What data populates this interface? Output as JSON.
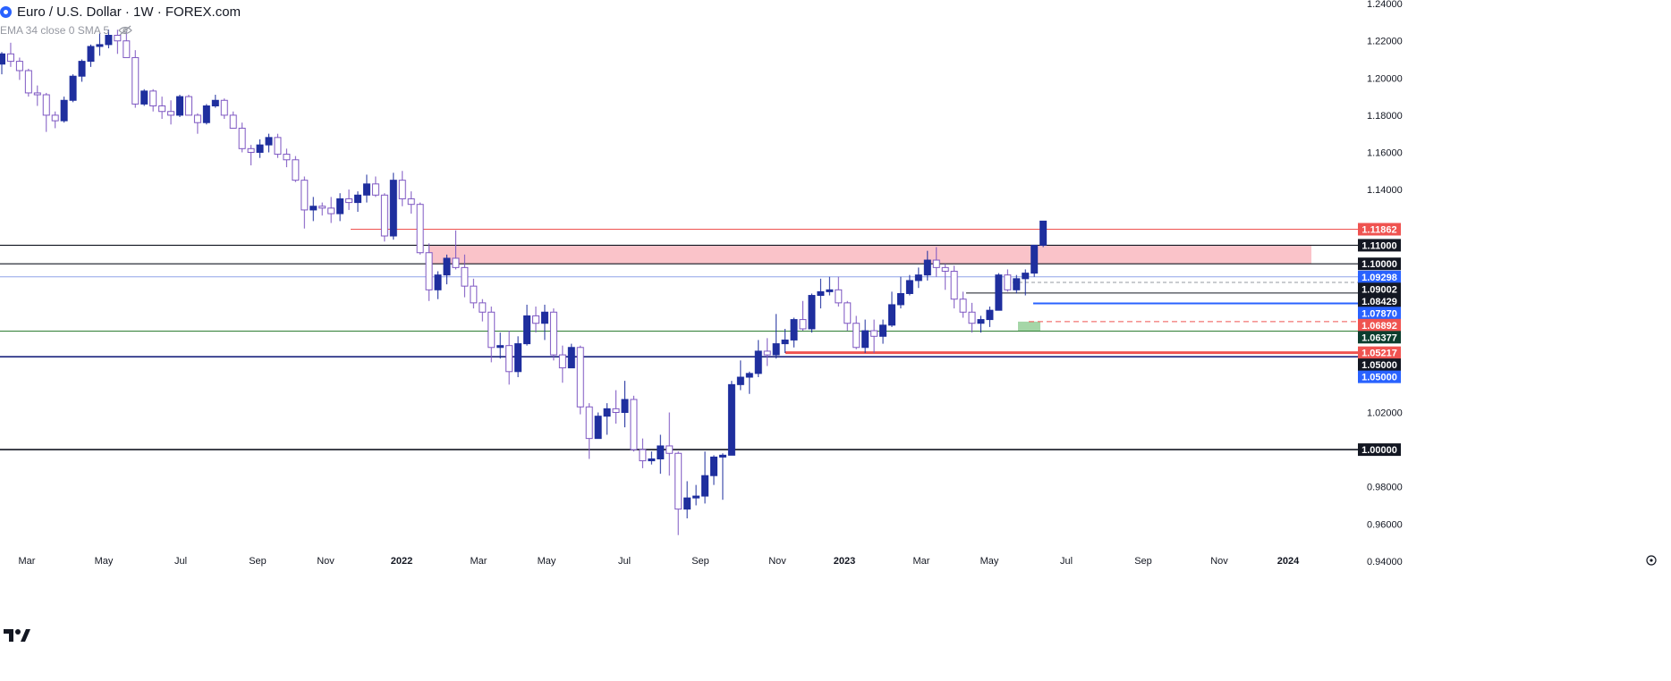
{
  "header": {
    "title": "Euro / U.S. Dollar · 1W · FOREX.com",
    "indicator": "EMA 34 close 0 SMA 5"
  },
  "colors": {
    "bull": "#1f2f9e",
    "bear_outline": "#7e57c2",
    "resistance_zone": "#f9b8c0",
    "support_zone": "#a5d6a7",
    "red_line": "#ef5350",
    "blue_line": "#2962ff",
    "black_line": "#131722"
  },
  "chart_data": {
    "type": "candlestick",
    "title": "Euro / U.S. Dollar · 1W · FOREX.com",
    "y_axis": {
      "min": 0.938,
      "max": 1.242,
      "ticks": [
        "1.24000",
        "1.22000",
        "1.20000",
        "1.18000",
        "1.16000",
        "1.14000",
        "1.02000",
        "0.98000",
        "0.96000",
        "0.94000"
      ]
    },
    "x_axis": {
      "labels": [
        "Mar",
        "May",
        "Jul",
        "Sep",
        "Nov",
        "2022",
        "Mar",
        "May",
        "Jul",
        "Sep",
        "Nov",
        "2023",
        "Mar",
        "May",
        "Jul",
        "Sep",
        "Nov",
        "2024"
      ],
      "start_date": "2021-02-22",
      "week_count": 127
    },
    "candles_ohlc": [
      [
        1.2075,
        1.214,
        1.202,
        1.213
      ],
      [
        1.213,
        1.219,
        1.206,
        1.209
      ],
      [
        1.209,
        1.211,
        1.199,
        1.204
      ],
      [
        1.204,
        1.205,
        1.19,
        1.192
      ],
      [
        1.192,
        1.196,
        1.185,
        1.191
      ],
      [
        1.191,
        1.192,
        1.171,
        1.18
      ],
      [
        1.18,
        1.182,
        1.173,
        1.177
      ],
      [
        1.177,
        1.19,
        1.176,
        1.188
      ],
      [
        1.188,
        1.202,
        1.187,
        1.201
      ],
      [
        1.201,
        1.21,
        1.198,
        1.209
      ],
      [
        1.209,
        1.218,
        1.206,
        1.217
      ],
      [
        1.217,
        1.224,
        1.212,
        1.218
      ],
      [
        1.218,
        1.226,
        1.216,
        1.223
      ],
      [
        1.223,
        1.226,
        1.213,
        1.22
      ],
      [
        1.22,
        1.225,
        1.211,
        1.211
      ],
      [
        1.211,
        1.215,
        1.184,
        1.186
      ],
      [
        1.186,
        1.194,
        1.185,
        1.193
      ],
      [
        1.193,
        1.194,
        1.182,
        1.185
      ],
      [
        1.185,
        1.19,
        1.178,
        1.182
      ],
      [
        1.182,
        1.188,
        1.175,
        1.18
      ],
      [
        1.18,
        1.191,
        1.179,
        1.19
      ],
      [
        1.19,
        1.191,
        1.18,
        1.18
      ],
      [
        1.18,
        1.181,
        1.17,
        1.176
      ],
      [
        1.176,
        1.186,
        1.175,
        1.185
      ],
      [
        1.185,
        1.191,
        1.184,
        1.188
      ],
      [
        1.188,
        1.189,
        1.178,
        1.18
      ],
      [
        1.18,
        1.182,
        1.173,
        1.173
      ],
      [
        1.173,
        1.176,
        1.16,
        1.162
      ],
      [
        1.162,
        1.164,
        1.153,
        1.16
      ],
      [
        1.16,
        1.167,
        1.157,
        1.164
      ],
      [
        1.164,
        1.17,
        1.16,
        1.168
      ],
      [
        1.168,
        1.17,
        1.157,
        1.159
      ],
      [
        1.159,
        1.162,
        1.152,
        1.156
      ],
      [
        1.156,
        1.158,
        1.144,
        1.145
      ],
      [
        1.145,
        1.147,
        1.119,
        1.129
      ],
      [
        1.129,
        1.136,
        1.123,
        1.131
      ],
      [
        1.131,
        1.133,
        1.126,
        1.13
      ],
      [
        1.13,
        1.136,
        1.122,
        1.127
      ],
      [
        1.127,
        1.138,
        1.123,
        1.135
      ],
      [
        1.135,
        1.14,
        1.129,
        1.133
      ],
      [
        1.133,
        1.139,
        1.128,
        1.137
      ],
      [
        1.137,
        1.148,
        1.133,
        1.143
      ],
      [
        1.143,
        1.147,
        1.136,
        1.137
      ],
      [
        1.137,
        1.138,
        1.112,
        1.115
      ],
      [
        1.115,
        1.149,
        1.113,
        1.145
      ],
      [
        1.145,
        1.15,
        1.131,
        1.135
      ],
      [
        1.135,
        1.139,
        1.127,
        1.132
      ],
      [
        1.132,
        1.133,
        1.105,
        1.106
      ],
      [
        1.106,
        1.111,
        1.08,
        1.086
      ],
      [
        1.086,
        1.096,
        1.081,
        1.094
      ],
      [
        1.094,
        1.105,
        1.089,
        1.103
      ],
      [
        1.103,
        1.118,
        1.097,
        1.098
      ],
      [
        1.098,
        1.105,
        1.082,
        1.088
      ],
      [
        1.088,
        1.092,
        1.076,
        1.079
      ],
      [
        1.079,
        1.081,
        1.069,
        1.074
      ],
      [
        1.074,
        1.077,
        1.047,
        1.055
      ],
      [
        1.055,
        1.063,
        1.049,
        1.056
      ],
      [
        1.056,
        1.064,
        1.035,
        1.042
      ],
      [
        1.042,
        1.061,
        1.039,
        1.057
      ],
      [
        1.057,
        1.078,
        1.056,
        1.072
      ],
      [
        1.072,
        1.077,
        1.063,
        1.068
      ],
      [
        1.068,
        1.078,
        1.059,
        1.074
      ],
      [
        1.074,
        1.076,
        1.048,
        1.051
      ],
      [
        1.051,
        1.056,
        1.036,
        1.044
      ],
      [
        1.044,
        1.057,
        1.044,
        1.055
      ],
      [
        1.055,
        1.056,
        1.019,
        1.023
      ],
      [
        1.023,
        1.025,
        0.995,
        1.006
      ],
      [
        1.006,
        1.02,
        1.006,
        1.018
      ],
      [
        1.018,
        1.025,
        1.008,
        1.022
      ],
      [
        1.022,
        1.032,
        1.014,
        1.02
      ],
      [
        1.02,
        1.037,
        1.012,
        1.027
      ],
      [
        1.027,
        1.029,
        0.999,
        1.0
      ],
      [
        1.0,
        1.006,
        0.99,
        0.994
      ],
      [
        0.994,
        0.999,
        0.992,
        0.995
      ],
      [
        0.995,
        1.008,
        0.987,
        1.002
      ],
      [
        1.002,
        1.02,
        0.986,
        0.998
      ],
      [
        0.998,
        0.999,
        0.954,
        0.968
      ],
      [
        0.968,
        0.983,
        0.963,
        0.974
      ],
      [
        0.974,
        0.981,
        0.97,
        0.975
      ],
      [
        0.975,
        0.999,
        0.971,
        0.986
      ],
      [
        0.986,
        0.997,
        0.981,
        0.996
      ],
      [
        0.996,
        0.998,
        0.973,
        0.997
      ],
      [
        0.997,
        1.037,
        0.997,
        1.035
      ],
      [
        1.035,
        1.048,
        1.032,
        1.039
      ],
      [
        1.039,
        1.042,
        1.03,
        1.041
      ],
      [
        1.041,
        1.059,
        1.039,
        1.053
      ],
      [
        1.053,
        1.06,
        1.045,
        1.051
      ],
      [
        1.051,
        1.073,
        1.049,
        1.057
      ],
      [
        1.057,
        1.065,
        1.052,
        1.059
      ],
      [
        1.059,
        1.071,
        1.055,
        1.07
      ],
      [
        1.07,
        1.08,
        1.064,
        1.065
      ],
      [
        1.065,
        1.084,
        1.063,
        1.083
      ],
      [
        1.083,
        1.092,
        1.076,
        1.085
      ],
      [
        1.085,
        1.093,
        1.083,
        1.086
      ],
      [
        1.086,
        1.093,
        1.077,
        1.079
      ],
      [
        1.079,
        1.08,
        1.064,
        1.068
      ],
      [
        1.068,
        1.072,
        1.054,
        1.055
      ],
      [
        1.055,
        1.07,
        1.052,
        1.064
      ],
      [
        1.064,
        1.07,
        1.052,
        1.061
      ],
      [
        1.061,
        1.07,
        1.057,
        1.067
      ],
      [
        1.067,
        1.085,
        1.066,
        1.078
      ],
      [
        1.078,
        1.093,
        1.076,
        1.084
      ],
      [
        1.084,
        1.094,
        1.083,
        1.091
      ],
      [
        1.091,
        1.098,
        1.087,
        1.094
      ],
      [
        1.094,
        1.107,
        1.091,
        1.102
      ],
      [
        1.102,
        1.109,
        1.093,
        1.098
      ],
      [
        1.098,
        1.1,
        1.086,
        1.096
      ],
      [
        1.096,
        1.099,
        1.076,
        1.081
      ],
      [
        1.081,
        1.085,
        1.071,
        1.074
      ],
      [
        1.074,
        1.079,
        1.063,
        1.068
      ],
      [
        1.068,
        1.072,
        1.063,
        1.07
      ],
      [
        1.07,
        1.077,
        1.066,
        1.075
      ],
      [
        1.075,
        1.095,
        1.075,
        1.094
      ],
      [
        1.094,
        1.097,
        1.085,
        1.086
      ],
      [
        1.086,
        1.094,
        1.084,
        1.092
      ],
      [
        1.092,
        1.097,
        1.083,
        1.095
      ],
      [
        1.095,
        1.11,
        1.093,
        1.11
      ],
      [
        1.11,
        1.123,
        1.109,
        1.123
      ]
    ],
    "horizontal_levels": [
      {
        "label": "1.11862",
        "value": 1.11862,
        "badge_color": "#ef5350",
        "line": "red"
      },
      {
        "label": "1.11000",
        "value": 1.11,
        "badge_color": "#131722",
        "line": "black"
      },
      {
        "label": "1.10000",
        "value": 1.1,
        "badge_color": "#131722",
        "line": "black"
      },
      {
        "label": "1.09298",
        "value": 1.09298,
        "badge_color": "#2962ff",
        "line": "blue"
      },
      {
        "label": "1.09002",
        "value": 1.09002,
        "badge_color": "#131722",
        "line": "dashed-gray"
      },
      {
        "label": "1.08429",
        "value": 1.08429,
        "badge_color": "#131722",
        "line": "black"
      },
      {
        "label": "1.07870",
        "value": 1.0787,
        "badge_color": "#2962ff",
        "line": "blue"
      },
      {
        "label": "1.06892",
        "value": 1.06892,
        "badge_color": "#ef5350",
        "line": "dashed-red"
      },
      {
        "label": "1.06377",
        "value": 1.06377,
        "badge_color": "#0b3d2e",
        "line": "green"
      },
      {
        "label": "1.05217",
        "value": 1.05217,
        "badge_color": "#ef5350",
        "line": "red"
      },
      {
        "label": "1.05000",
        "value": 1.05,
        "badge_color": "#131722",
        "line": "black"
      },
      {
        "label": "1.05000",
        "value": 1.05,
        "badge_color": "#2962ff",
        "line": "blue"
      },
      {
        "label": "1.00000",
        "value": 1.0,
        "badge_color": "#131722",
        "line": "black"
      }
    ],
    "zones": [
      {
        "name": "resistance",
        "from": 1.1,
        "to": 1.11,
        "start_week": 49,
        "end_week": 126
      },
      {
        "name": "support",
        "from": 1.0637,
        "to": 1.0689,
        "start_week": 114,
        "end_week": 117
      }
    ]
  }
}
